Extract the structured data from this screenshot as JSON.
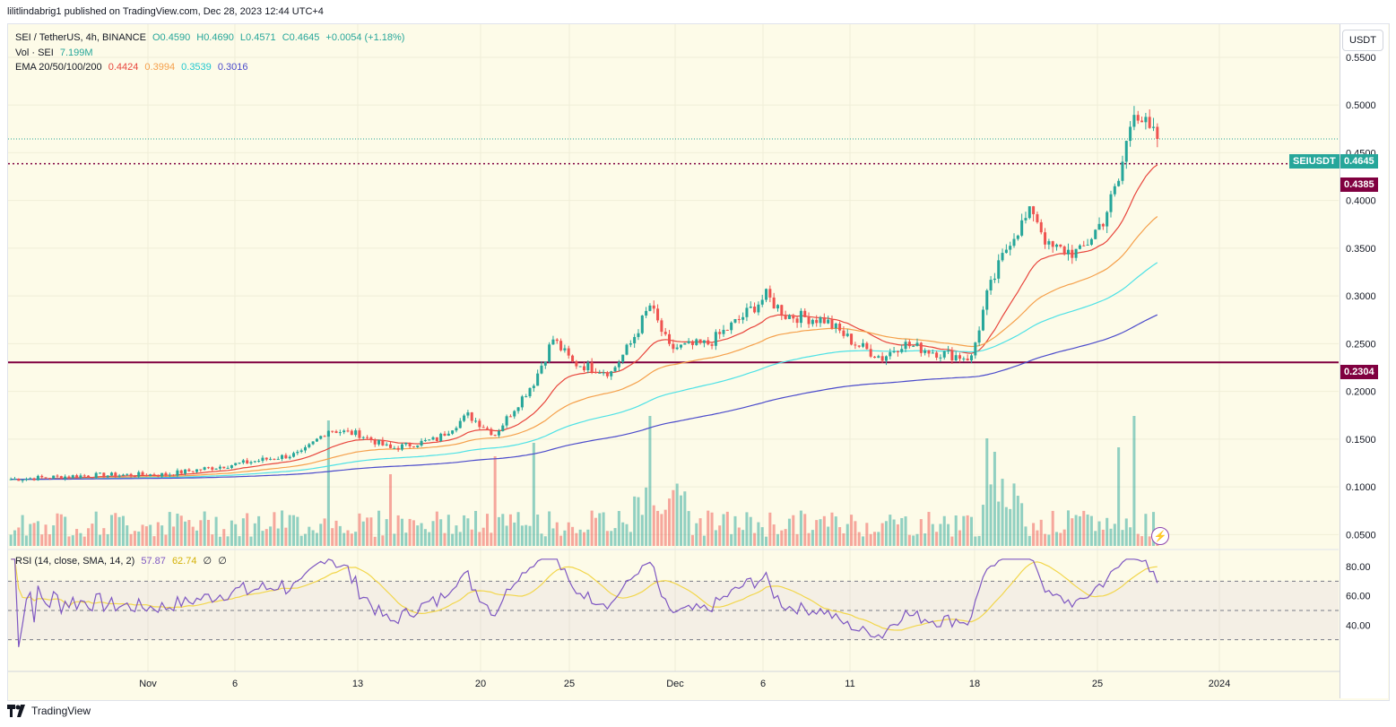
{
  "header": {
    "text": "lilitlindabrig1 published on TradingView.com, Dec 28, 2023 12:44 UTC+4"
  },
  "legend": {
    "symbol": "SEI / TetherUS, 4h, BINANCE",
    "ohlc": {
      "o": "O0.4590",
      "h": "H0.4690",
      "l": "L0.4571",
      "c": "C0.4645",
      "chg": "+0.0054 (+1.18%)"
    },
    "vol_label": "Vol · SEI",
    "vol_value": "7.199M",
    "ema_label": "EMA 20/50/100/200",
    "ema_values": [
      "0.4424",
      "0.3994",
      "0.3539",
      "0.3016"
    ],
    "rsi_label": "RSI (14, close, SMA, 14, 2)",
    "rsi_values": [
      "57.87",
      "62.74",
      "∅",
      "∅"
    ]
  },
  "currency_button": "USDT",
  "price_labels": {
    "symbol_tag": "SEIUSDT",
    "last": "0.4645",
    "line_upper": "0.4385",
    "line_lower": "0.2304"
  },
  "footer": {
    "brand": "TradingView"
  },
  "colors": {
    "up": "#26a69a",
    "down": "#ef5350",
    "ema20": "#e8453c",
    "ema50": "#f5a04b",
    "ema100": "#4de1e6",
    "ema200": "#4a4acb",
    "rsi": "#7e57c2",
    "rsi_ma": "#f2d64b",
    "hline": "#800040"
  },
  "chart_data": {
    "type": "candlestick",
    "symbol": "SEI / TetherUS",
    "interval": "4h",
    "exchange": "BINANCE",
    "ylim": [
      0.04,
      0.58
    ],
    "y_ticks": [
      "0.5500",
      "0.5000",
      "0.4500",
      "0.4000",
      "0.3500",
      "0.3000",
      "0.2500",
      "0.2000",
      "0.1500",
      "0.1000",
      "0.0500"
    ],
    "x_ticks": [
      "Nov",
      "6",
      "13",
      "20",
      "25",
      "Dec",
      "6",
      "11",
      "18",
      "25",
      "2024"
    ],
    "horizontal_lines": [
      0.4385,
      0.2304
    ],
    "key_points": [
      {
        "t": 0,
        "price": 0.108
      },
      {
        "t": 20,
        "price": 0.112
      },
      {
        "t": 40,
        "price": 0.113
      },
      {
        "t": 60,
        "price": 0.125
      },
      {
        "t": 75,
        "price": 0.135
      },
      {
        "t": 82,
        "price": 0.16
      },
      {
        "t": 90,
        "price": 0.155
      },
      {
        "t": 98,
        "price": 0.14
      },
      {
        "t": 110,
        "price": 0.15
      },
      {
        "t": 118,
        "price": 0.175
      },
      {
        "t": 125,
        "price": 0.155
      },
      {
        "t": 135,
        "price": 0.21
      },
      {
        "t": 140,
        "price": 0.255
      },
      {
        "t": 145,
        "price": 0.23
      },
      {
        "t": 155,
        "price": 0.22
      },
      {
        "t": 160,
        "price": 0.25
      },
      {
        "t": 165,
        "price": 0.29
      },
      {
        "t": 170,
        "price": 0.245
      },
      {
        "t": 180,
        "price": 0.25
      },
      {
        "t": 188,
        "price": 0.275
      },
      {
        "t": 195,
        "price": 0.3
      },
      {
        "t": 200,
        "price": 0.28
      },
      {
        "t": 210,
        "price": 0.275
      },
      {
        "t": 218,
        "price": 0.25
      },
      {
        "t": 225,
        "price": 0.235
      },
      {
        "t": 230,
        "price": 0.25
      },
      {
        "t": 240,
        "price": 0.24
      },
      {
        "t": 248,
        "price": 0.235
      },
      {
        "t": 252,
        "price": 0.3
      },
      {
        "t": 258,
        "price": 0.36
      },
      {
        "t": 264,
        "price": 0.39
      },
      {
        "t": 268,
        "price": 0.35
      },
      {
        "t": 276,
        "price": 0.345
      },
      {
        "t": 282,
        "price": 0.38
      },
      {
        "t": 286,
        "price": 0.42
      },
      {
        "t": 290,
        "price": 0.5
      },
      {
        "t": 294,
        "price": 0.47
      },
      {
        "t": 296,
        "price": 0.4645
      }
    ],
    "ema_last": {
      "ema20": 0.4424,
      "ema50": 0.3994,
      "ema100": 0.3539,
      "ema200": 0.3016
    },
    "rsi_ticks": [
      "80.00",
      "60.00",
      "40.00"
    ],
    "rsi_last": 57.87,
    "rsi_ma_last": 62.74
  }
}
